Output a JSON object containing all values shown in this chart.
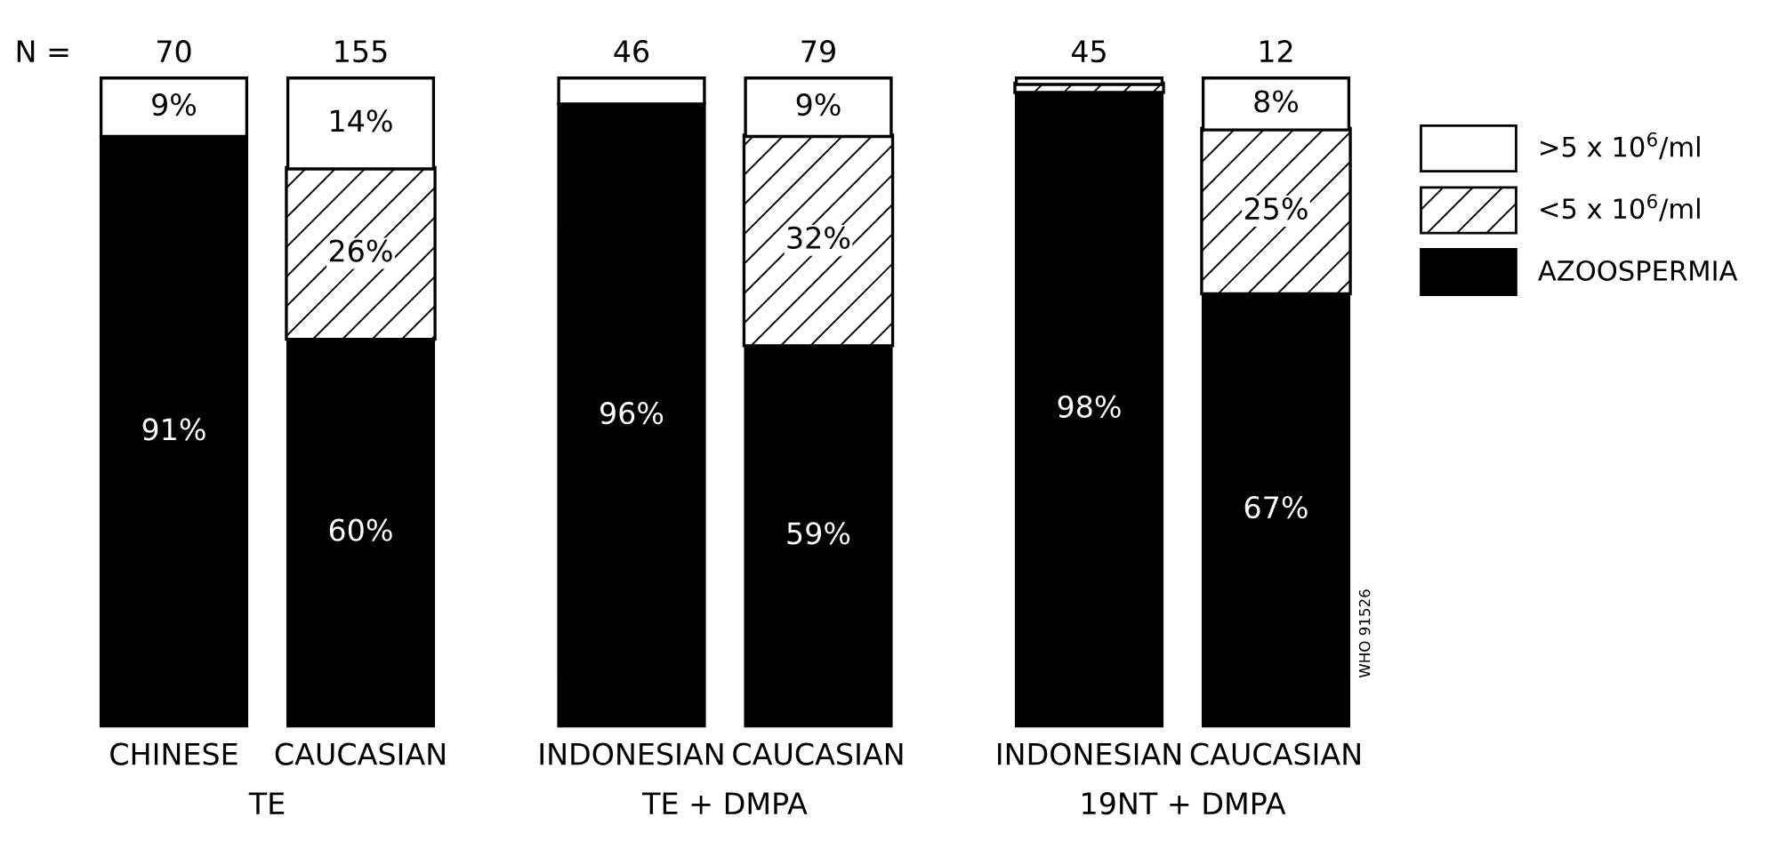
{
  "chart_data": {
    "type": "bar",
    "stacked": true,
    "categories": [
      "CHINESE",
      "CAUCASIAN",
      "INDONESIAN",
      "CAUCASIAN",
      "INDONESIAN",
      "CAUCASIAN"
    ],
    "series": [
      {
        "name": "AZOOSPERMIA",
        "color": "#000000",
        "values": [
          91,
          60,
          96,
          59,
          98,
          67
        ],
        "value_labels": [
          "91%",
          "60%",
          "96%",
          "59%",
          "98%",
          "67%"
        ]
      },
      {
        "name": "<5 x 10$^{6}$/ml",
        "color": "#ffffff",
        "values": [
          0,
          26,
          0,
          32,
          1,
          25
        ],
        "value_labels": [
          null,
          "26%",
          null,
          "32%",
          null,
          "25%"
        ]
      },
      {
        "name": ">5 x 10$^{6}$/ml",
        "color": "#ffffff",
        "values": [
          9,
          14,
          4,
          9,
          1,
          8
        ],
        "value_labels": [
          "9%",
          "14%",
          null,
          "9%",
          null,
          "8%"
        ]
      }
    ],
    "annotations": [
      "N =",
      "70",
      "155",
      "46",
      "79",
      "45",
      "12",
      "TE",
      "TE + DMPA",
      "19NT + DMPA",
      "WHO 91526"
    ],
    "legend": "right",
    "grid": false
  }
}
